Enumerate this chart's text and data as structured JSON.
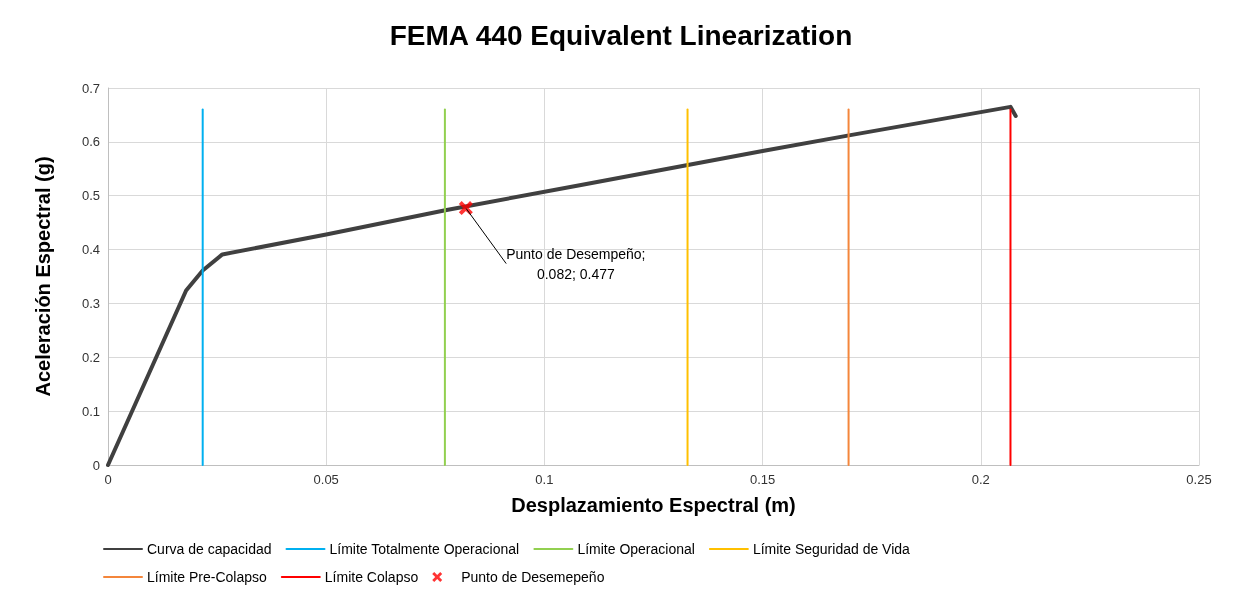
{
  "chart_data": {
    "type": "line",
    "title": "FEMA 440 Equivalent Linearization",
    "xlabel": "Desplazamiento Espectral (m)",
    "ylabel": "Aceleración Espectral (g)",
    "xlim": [
      0,
      0.25
    ],
    "xticks": [
      0,
      0.05,
      0.1,
      0.15,
      0.2,
      0.25
    ],
    "ylim": [
      0,
      0.7
    ],
    "yticks": [
      0,
      0.1,
      0.2,
      0.3,
      0.4,
      0.5,
      0.6,
      0.7
    ],
    "grid": true,
    "legend": "bottom",
    "marker": "none",
    "line_style": "solid",
    "series": [
      {
        "name": "Curva de capacidad",
        "color": "#404040",
        "x": [
          0,
          0.0179,
          0.0217,
          0.0262,
          0.05,
          0.0773,
          0.1084,
          0.15,
          0.1698,
          0.2068,
          0.208
        ],
        "values": [
          0,
          0.324,
          0.361,
          0.391,
          0.428,
          0.473,
          0.52,
          0.583,
          0.612,
          0.665,
          0.648
        ]
      },
      {
        "name": "Límite Totalmente Operacional",
        "color": "#00b0f0",
        "x": [
          0.0217,
          0.0217
        ],
        "values": [
          0,
          0.66
        ]
      },
      {
        "name": "Límite Operacional",
        "color": "#92d050",
        "x": [
          0.0772,
          0.0772
        ],
        "values": [
          0,
          0.66
        ]
      },
      {
        "name": "Límite Seguridad de Vida",
        "color": "#ffc000",
        "x": [
          0.1328,
          0.1328
        ],
        "values": [
          0,
          0.66
        ]
      },
      {
        "name": "Límite Pre-Colapso",
        "color": "#f4863b",
        "x": [
          0.1697,
          0.1697
        ],
        "values": [
          0,
          0.66
        ]
      },
      {
        "name": "Límite Colapso",
        "color": "#ff0000",
        "x": [
          0.2068,
          0.2068
        ],
        "values": [
          0,
          0.66
        ]
      },
      {
        "name": "Punto de Desemepeño",
        "type": "scatter",
        "marker": "cross",
        "color": "#ff0000",
        "x": [
          0.082
        ],
        "values": [
          0.477
        ]
      }
    ],
    "annotations": [
      {
        "text": "Punto de Desempeño;\n0.082; 0.477",
        "x": 0.082,
        "y": 0.477
      }
    ]
  }
}
